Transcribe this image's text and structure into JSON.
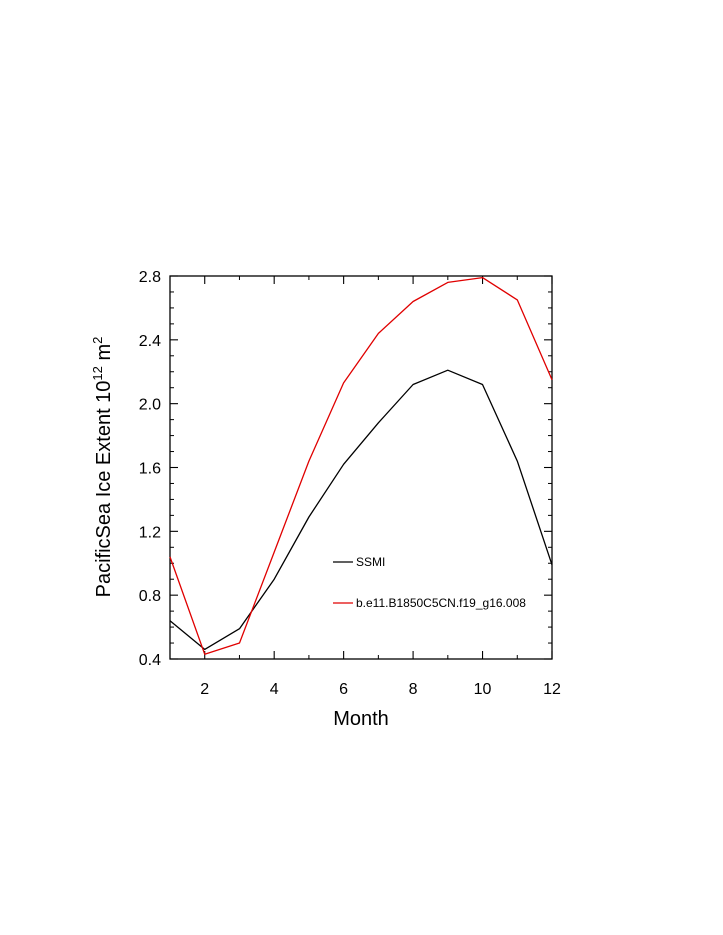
{
  "chart_data": {
    "type": "line",
    "title": "",
    "xlabel": "Month",
    "ylabel_main": "PacificSea Ice Extent 10",
    "ylabel_exp": "12",
    "ylabel_unit": " m",
    "ylabel_unit_exp": "2",
    "xlim": [
      1,
      12
    ],
    "ylim": [
      0.4,
      2.8
    ],
    "xticks": [
      2,
      4,
      6,
      8,
      10,
      12
    ],
    "xtick_labels": [
      "2",
      "4",
      "6",
      "8",
      "10",
      "12"
    ],
    "yticks": [
      0.4,
      0.8,
      1.2,
      1.6,
      2.0,
      2.4,
      2.8
    ],
    "ytick_labels": [
      "0.4",
      "0.8",
      "1.2",
      "1.6",
      "2.0",
      "2.4",
      "2.8"
    ],
    "x": [
      1,
      2,
      3,
      4,
      5,
      6,
      7,
      8,
      9,
      10,
      11,
      12
    ],
    "series": [
      {
        "name": "SSMI",
        "color": "#000000",
        "values": [
          0.64,
          0.46,
          0.59,
          0.9,
          1.29,
          1.62,
          1.88,
          2.12,
          2.21,
          2.12,
          1.64,
          0.99
        ]
      },
      {
        "name": "b.e11.B1850C5CN.f19_g16.008",
        "color": "#e00000",
        "values": [
          1.04,
          0.43,
          0.5,
          1.07,
          1.64,
          2.13,
          2.44,
          2.64,
          2.76,
          2.79,
          2.65,
          2.15
        ]
      }
    ],
    "legend_position": "lower-center-inside",
    "grid": false
  }
}
